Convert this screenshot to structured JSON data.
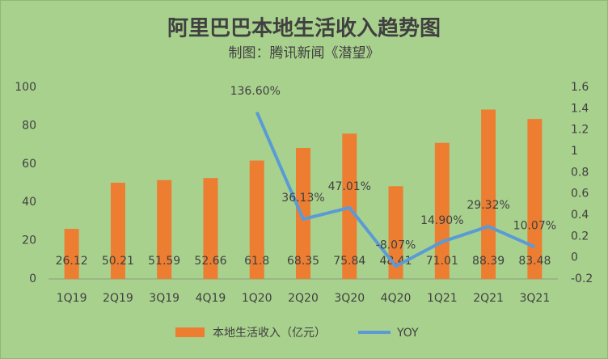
{
  "chart_data": {
    "type": "bar_line",
    "title": "阿里巴巴本地生活收入趋势图",
    "subtitle": "制图：腾讯新闻《潜望》",
    "categories": [
      "1Q19",
      "2Q19",
      "3Q19",
      "4Q19",
      "1Q20",
      "2Q20",
      "3Q20",
      "4Q20",
      "1Q21",
      "2Q21",
      "3Q21"
    ],
    "series": [
      {
        "name": "本地生活收入（亿元）",
        "type": "bar",
        "color": "#ed7d31",
        "values": [
          26.12,
          50.21,
          51.59,
          52.66,
          61.8,
          68.35,
          75.84,
          48.41,
          71.01,
          88.39,
          83.48
        ]
      },
      {
        "name": "YOY",
        "type": "line",
        "axis": "y2",
        "color": "#5b9bd5",
        "values": [
          null,
          null,
          null,
          null,
          1.366,
          0.3613,
          0.4701,
          -0.0807,
          0.149,
          0.2932,
          0.1007
        ],
        "value_labels": [
          null,
          null,
          null,
          null,
          "136.60%",
          "36.13%",
          "47.01%",
          "-8.07%",
          "14.90%",
          "29.32%",
          "10.07%"
        ]
      }
    ],
    "ylim": [
      0,
      100
    ],
    "yticks": [
      0,
      20,
      40,
      60,
      80,
      100
    ],
    "y2lim": [
      -0.2,
      1.6
    ],
    "y2ticks": [
      -0.2,
      0,
      0.2,
      0.4,
      0.6,
      0.8,
      1,
      1.2,
      1.4,
      1.6
    ],
    "grid": false,
    "legend": "bottom"
  }
}
